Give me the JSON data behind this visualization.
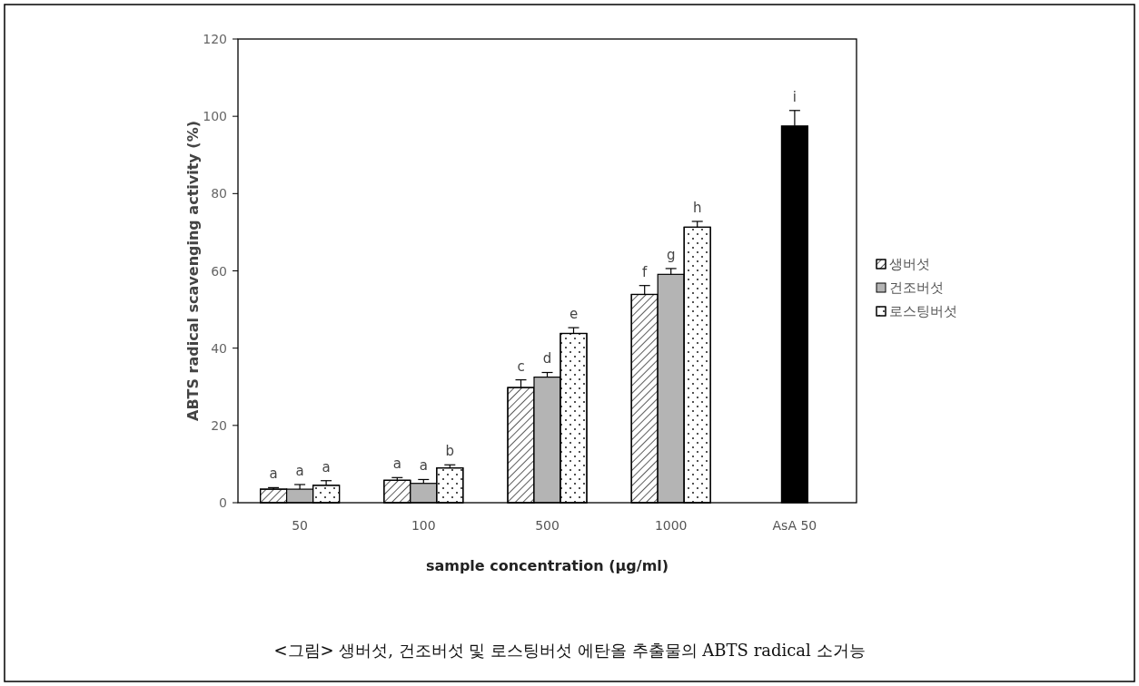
{
  "chart_data": {
    "type": "bar",
    "xlabel": "sample concentration (μg/ml)",
    "ylabel": "ABTS radical scavenging activity (%)",
    "categories": [
      "50",
      "100",
      "500",
      "1000",
      "AsA 50"
    ],
    "series": [
      {
        "name": "생버섯",
        "color": "#ffffff",
        "values": [
          3.5,
          5.8,
          29.8,
          53.9,
          null
        ],
        "errors": [
          0.4,
          0.7,
          2.0,
          2.3,
          null
        ],
        "value_labels": [
          "a",
          "a",
          "c",
          "f",
          null
        ]
      },
      {
        "name": "건조버섯",
        "color": "#b4b4b4",
        "values": [
          3.5,
          5.0,
          32.5,
          59.1,
          null
        ],
        "errors": [
          1.2,
          1.0,
          1.2,
          1.5,
          null
        ],
        "value_labels": [
          "a",
          "a",
          "d",
          "g",
          null
        ]
      },
      {
        "name": "로스팅버섯",
        "color": "#ffffff",
        "values": [
          4.5,
          9.0,
          43.8,
          71.3,
          null
        ],
        "errors": [
          1.2,
          0.8,
          1.5,
          1.5,
          null
        ],
        "value_labels": [
          "a",
          "b",
          "e",
          "h",
          null
        ]
      },
      {
        "color": "#000000",
        "values": [
          null,
          null,
          null,
          null,
          97.5
        ],
        "errors": [
          null,
          null,
          null,
          null,
          4.0
        ],
        "value_labels": [
          null,
          null,
          null,
          null,
          "i"
        ]
      }
    ],
    "ylim": [
      0,
      120
    ],
    "yticks": [
      0,
      20,
      40,
      60,
      80,
      100,
      120
    ],
    "grid": false,
    "legend": "right",
    "annotations": [
      "<그림> 생버섯, 건조버섯 및 로스팅버섯 에탄올 추출물의 ABTS radical 소거능"
    ]
  }
}
